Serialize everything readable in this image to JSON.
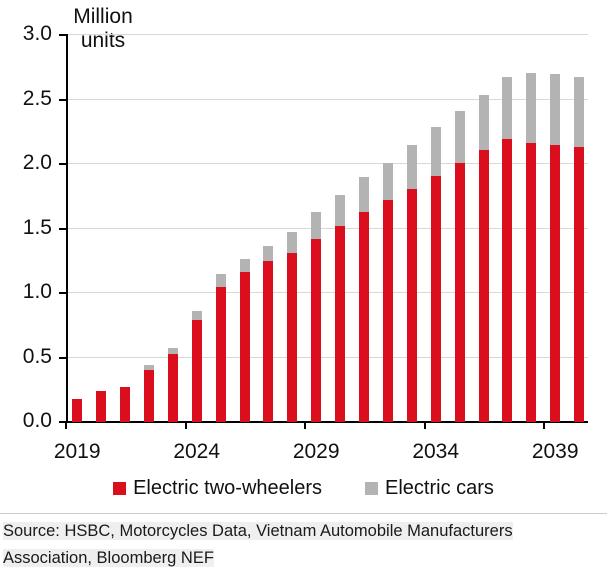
{
  "colors": {
    "two_wheelers_red": "#db0e1e",
    "cars_gray": "#b3b3b3",
    "gridline": "#d8d8d8",
    "axis": "#000000",
    "source_highlight": "#efefef"
  },
  "chart_data": {
    "type": "bar",
    "stacked": true,
    "title": "",
    "ylabel": "Million units",
    "ylim": [
      0,
      3.0
    ],
    "grid": "horizontal",
    "legend_position": "bottom",
    "yticks": [
      "0.0",
      "0.5",
      "1.0",
      "1.5",
      "2.0",
      "2.5",
      "3.0"
    ],
    "categories": [
      2019,
      2020,
      2021,
      2022,
      2023,
      2024,
      2025,
      2026,
      2027,
      2028,
      2029,
      2030,
      2031,
      2032,
      2033,
      2034,
      2035,
      2036,
      2037,
      2038,
      2039,
      2040
    ],
    "xtick_labels": [
      "2019",
      "2024",
      "2029",
      "2034",
      "2039"
    ],
    "xtick_indices": [
      0,
      5,
      10,
      15,
      20
    ],
    "series": [
      {
        "name": "Electric two-wheelers",
        "color": "#db0e1e",
        "values": [
          0.18,
          0.24,
          0.27,
          0.4,
          0.53,
          0.79,
          1.05,
          1.16,
          1.25,
          1.31,
          1.42,
          1.52,
          1.63,
          1.72,
          1.81,
          1.91,
          2.01,
          2.11,
          2.19,
          2.16,
          2.15,
          2.13
        ]
      },
      {
        "name": "Electric cars",
        "color": "#b3b3b3",
        "values": [
          0.0,
          0.0,
          0.0,
          0.04,
          0.05,
          0.07,
          0.1,
          0.1,
          0.12,
          0.16,
          0.21,
          0.24,
          0.27,
          0.29,
          0.34,
          0.38,
          0.4,
          0.43,
          0.48,
          0.54,
          0.55,
          0.54
        ]
      }
    ]
  },
  "legend": {
    "items": [
      {
        "label": "Electric two-wheelers",
        "color": "#db0e1e"
      },
      {
        "label": "Electric cars",
        "color": "#b3b3b3"
      }
    ]
  },
  "source": {
    "text": "Source: HSBC, Motorcycles Data, Vietnam Automobile Manufacturers Association, Bloomberg NEF"
  }
}
